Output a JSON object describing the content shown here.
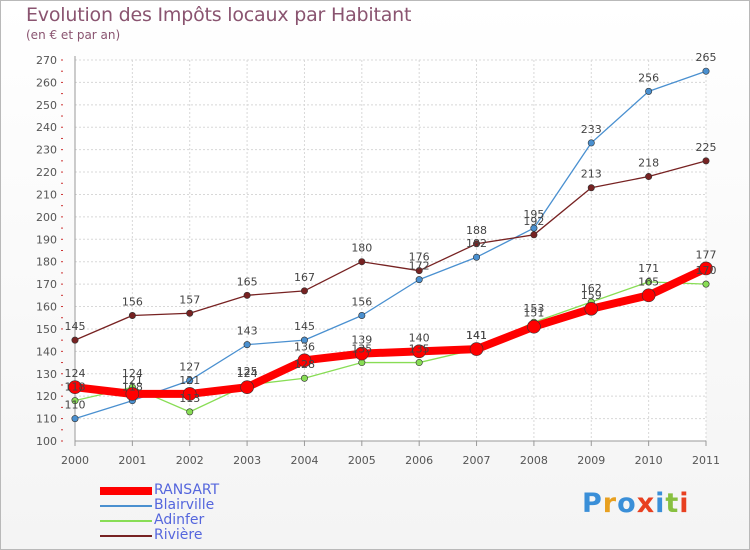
{
  "header": {
    "title": "Evolution des Impôts locaux par Habitant",
    "subtitle": "(en € et par an)"
  },
  "logo": {
    "text": "Proxiti"
  },
  "chart_data": {
    "type": "line",
    "x": [
      "2000",
      "2001",
      "2002",
      "2003",
      "2004",
      "2005",
      "2006",
      "2007",
      "2008",
      "2009",
      "2010",
      "2011"
    ],
    "ylim": [
      100,
      270
    ],
    "yticks": [
      100,
      110,
      120,
      130,
      140,
      150,
      160,
      170,
      180,
      190,
      200,
      210,
      220,
      230,
      240,
      250,
      260,
      270
    ],
    "grid": true,
    "legend_position": "bottom-left",
    "series": [
      {
        "name": "RANSART",
        "color": "#ff0000",
        "values": [
          124,
          121,
          121,
          124,
          136,
          139,
          140,
          141,
          151,
          159,
          165,
          177
        ]
      },
      {
        "name": "Blairville",
        "color": "#4a90d0",
        "values": [
          110,
          118,
          127,
          143,
          145,
          156,
          172,
          182,
          195,
          233,
          256,
          265
        ]
      },
      {
        "name": "Adinfer",
        "color": "#88dd55",
        "values": [
          118,
          124,
          113,
          125,
          128,
          135,
          135,
          141,
          153,
          162,
          171,
          170
        ]
      },
      {
        "name": "Rivière",
        "color": "#772222",
        "values": [
          145,
          156,
          157,
          165,
          167,
          180,
          176,
          188,
          192,
          213,
          218,
          225
        ]
      }
    ]
  }
}
